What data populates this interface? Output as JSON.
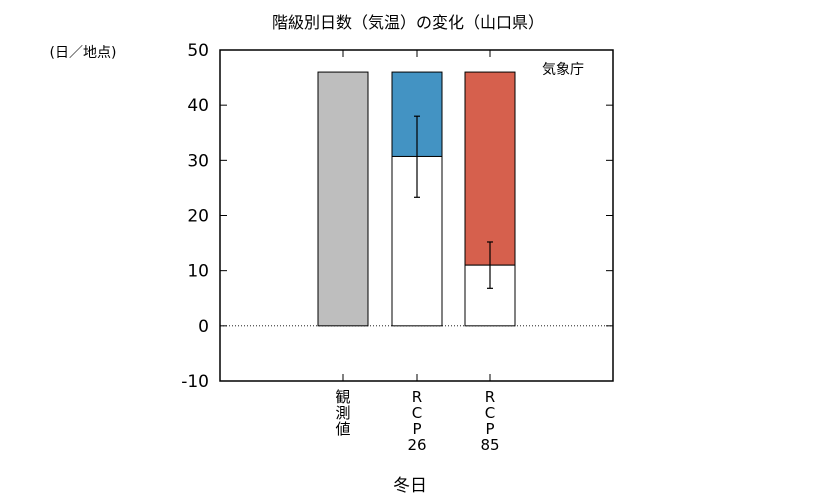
{
  "chart_data": {
    "type": "bar",
    "title": "階級別日数（気温）の変化（山口県）",
    "ylabel": "(日／地点)",
    "xlabel": "冬日",
    "source": "気象庁",
    "ylim": [
      -10,
      50
    ],
    "yticks": [
      -10,
      0,
      10,
      20,
      30,
      40,
      50
    ],
    "grid": false,
    "zero_line": "dotted",
    "categories": [
      {
        "label_lines": [
          "観",
          "測",
          "値"
        ]
      },
      {
        "label_lines": [
          "R",
          "C",
          "P",
          "26"
        ]
      },
      {
        "label_lines": [
          "R",
          "C",
          "P",
          "85"
        ]
      }
    ],
    "bars": [
      {
        "category": 0,
        "total": 46,
        "base": null,
        "change": null,
        "error_low": null,
        "error_high": null,
        "color": "#bebebe"
      },
      {
        "category": 1,
        "total": 46,
        "base": 30.7,
        "change": -15.3,
        "error_low": 23.3,
        "error_high": 38.0,
        "color": "#4393c3"
      },
      {
        "category": 2,
        "total": 46,
        "base": 11.0,
        "change": -35.0,
        "error_low": 6.8,
        "error_high": 15.2,
        "color": "#d6604d"
      }
    ]
  }
}
